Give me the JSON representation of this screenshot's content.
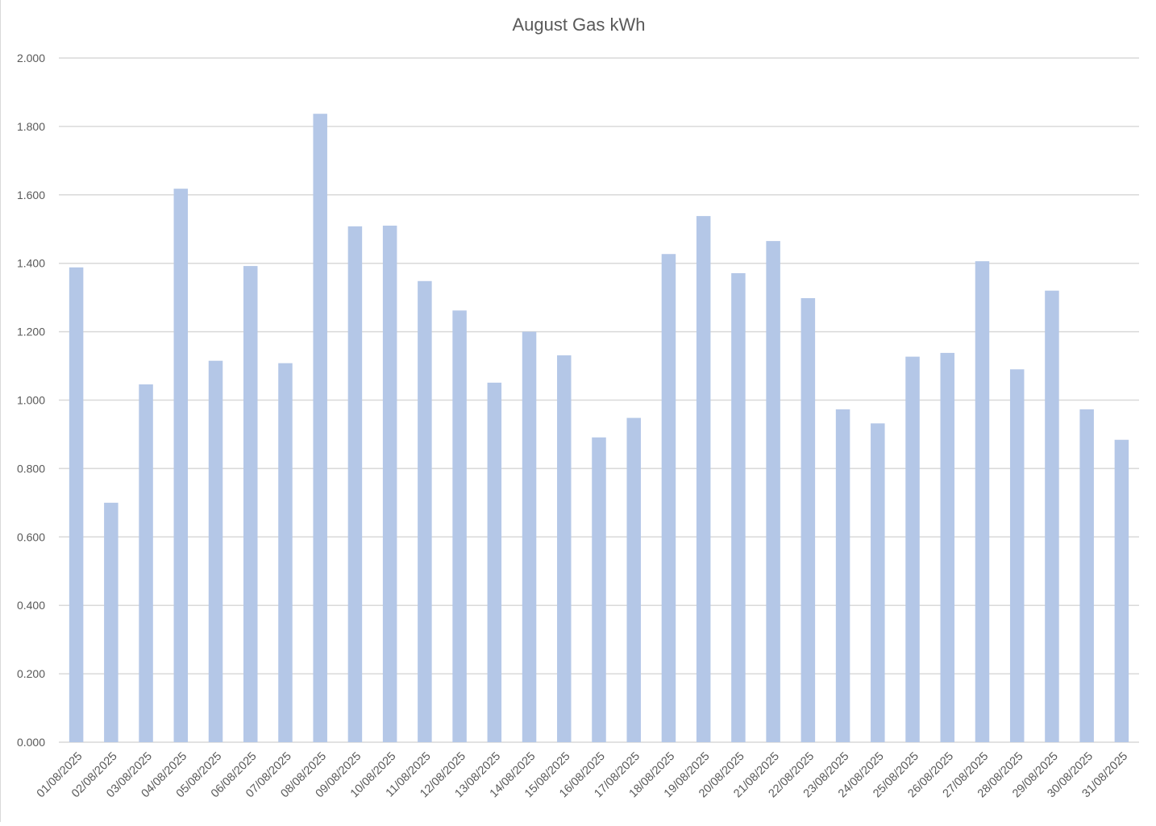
{
  "chart_data": {
    "type": "bar",
    "title": "August Gas kWh",
    "xlabel": "",
    "ylabel": "",
    "ylim": [
      0,
      2
    ],
    "yticks": [
      "0.000",
      "0.200",
      "0.400",
      "0.600",
      "0.800",
      "1.000",
      "1.200",
      "1.400",
      "1.600",
      "1.800",
      "2.000"
    ],
    "grid": true,
    "legend": "none",
    "bar_color": "#b4c7e7",
    "grid_color": "#d9d9d9",
    "categories": [
      "01/08/2025",
      "02/08/2025",
      "03/08/2025",
      "04/08/2025",
      "05/08/2025",
      "06/08/2025",
      "07/08/2025",
      "08/08/2025",
      "09/08/2025",
      "10/08/2025",
      "11/08/2025",
      "12/08/2025",
      "13/08/2025",
      "14/08/2025",
      "15/08/2025",
      "16/08/2025",
      "17/08/2025",
      "18/08/2025",
      "19/08/2025",
      "20/08/2025",
      "21/08/2025",
      "22/08/2025",
      "23/08/2025",
      "24/08/2025",
      "25/08/2025",
      "26/08/2025",
      "27/08/2025",
      "28/08/2025",
      "29/08/2025",
      "30/08/2025",
      "31/08/2025"
    ],
    "values": [
      1.388,
      0.7,
      1.046,
      1.618,
      1.115,
      1.392,
      1.108,
      1.837,
      1.508,
      1.51,
      1.348,
      1.262,
      1.051,
      1.2,
      1.131,
      0.891,
      0.948,
      1.427,
      1.538,
      1.371,
      1.465,
      1.298,
      0.973,
      0.932,
      1.127,
      1.138,
      1.406,
      1.09,
      1.32,
      0.973,
      0.884
    ]
  }
}
